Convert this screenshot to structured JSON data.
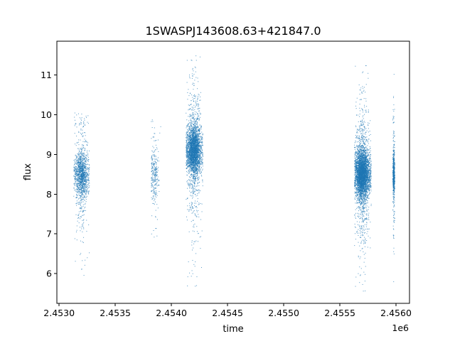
{
  "chart_data": {
    "type": "scatter",
    "title": "1SWASPJ143608.63+421847.0",
    "xlabel": "time",
    "ylabel": "flux",
    "x_offset_label": "1e6",
    "xlim": [
      2.45298,
      2.45612
    ],
    "ylim": [
      5.25,
      11.85
    ],
    "x_ticks": [
      2.453,
      2.4535,
      2.454,
      2.4545,
      2.455,
      2.4555,
      2.456
    ],
    "x_tick_labels": [
      "2.4530",
      "2.4535",
      "2.4540",
      "2.4545",
      "2.4550",
      "2.4555",
      "2.4560"
    ],
    "y_ticks": [
      6,
      7,
      8,
      9,
      10,
      11
    ],
    "y_tick_labels": [
      "6",
      "7",
      "8",
      "9",
      "10",
      "11"
    ],
    "grid": false,
    "marker_color": "#1f77b4",
    "series": [
      {
        "observing_seasons": [
          {
            "x_range": [
              2.45313,
              2.45327
            ],
            "center_x": 2.4532,
            "flux_center": 8.5,
            "flux_range": [
              5.75,
              10.05
            ],
            "n_points": 1400
          },
          {
            "x_range": [
              2.45382,
              2.45391
            ],
            "center_x": 2.45385,
            "flux_center": 8.5,
            "flux_range": [
              6.7,
              9.95
            ],
            "n_points": 280
          },
          {
            "x_range": [
              2.45413,
              2.45428
            ],
            "center_x": 2.4542,
            "flux_center": 9.1,
            "flux_range": [
              5.65,
              11.5
            ],
            "n_points": 3200
          },
          {
            "x_range": [
              2.45563,
              2.45578
            ],
            "center_x": 2.4557,
            "flux_center": 8.5,
            "flux_range": [
              5.5,
              11.3
            ],
            "n_points": 4200
          },
          {
            "x_range": [
              2.45597,
              2.45599
            ],
            "center_x": 2.45598,
            "flux_center": 8.5,
            "flux_range": [
              5.5,
              11.05
            ],
            "n_points": 600
          }
        ]
      }
    ]
  }
}
